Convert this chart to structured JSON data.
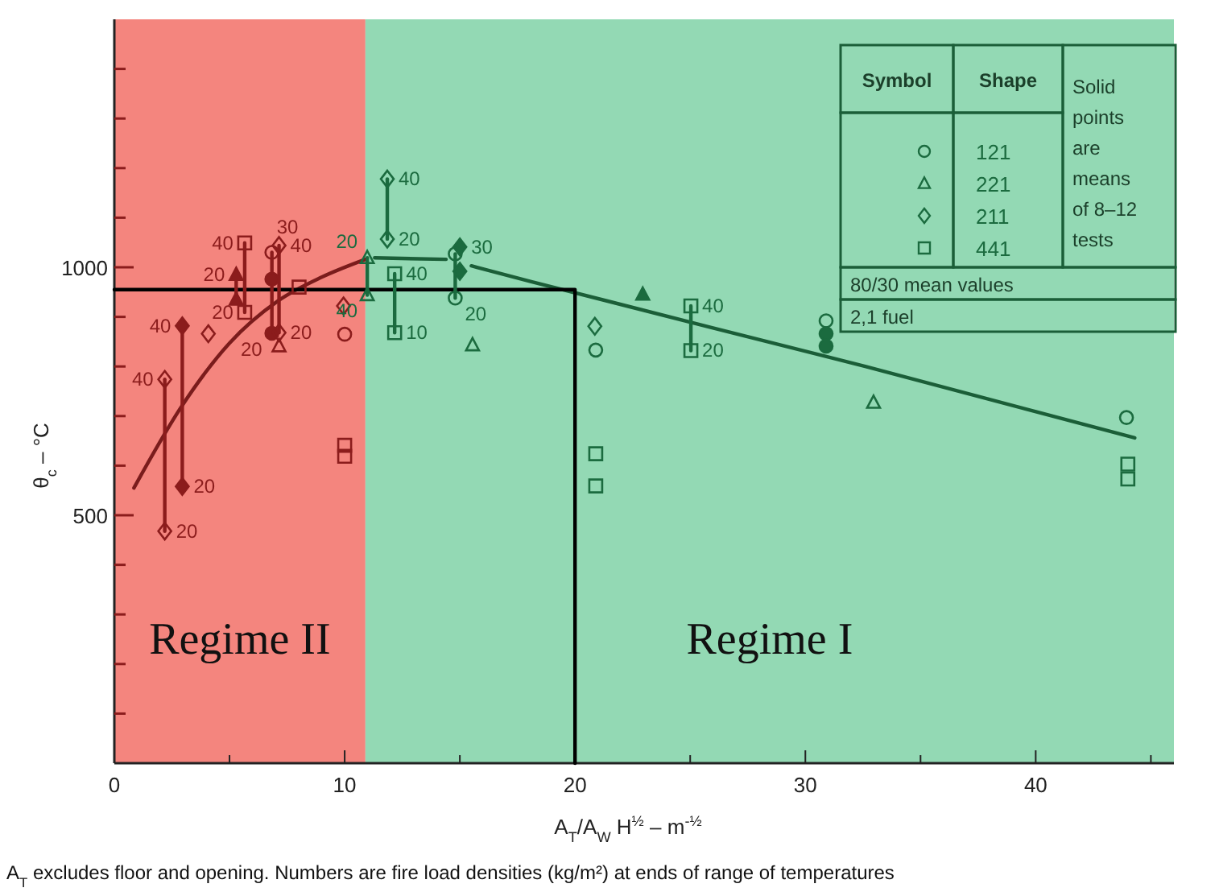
{
  "chart_data": {
    "type": "scatter",
    "xlabel": "A$_{T}$/A$_{W}$ H$^{½}$ – m$^{-½}$",
    "ylabel": "θ$_{c}$ – °C",
    "xlim": [
      0,
      46
    ],
    "ylim": [
      0,
      1500
    ],
    "xticks": [
      0,
      {
        "value": 5,
        "label": null
      },
      10,
      {
        "value": 15,
        "label": null
      },
      20,
      {
        "value": 25,
        "label": null
      },
      30,
      {
        "value": 35,
        "label": null
      },
      40,
      {
        "value": 45,
        "label": null
      }
    ],
    "yticks": [
      {
        "value": 100,
        "label": null
      },
      {
        "value": 200,
        "label": null
      },
      {
        "value": 300,
        "label": null
      },
      {
        "value": 400,
        "label": null
      },
      500,
      {
        "value": 600,
        "label": null
      },
      {
        "value": 700,
        "label": null
      },
      {
        "value": 800,
        "label": null
      },
      {
        "value": 900,
        "label": null
      },
      1000,
      {
        "value": 1100,
        "label": null
      },
      {
        "value": 1200,
        "label": null
      },
      {
        "value": 1300,
        "label": null
      },
      {
        "value": 1400,
        "label": null
      }
    ],
    "legend": "top right",
    "legend_title": "Symbol",
    "bands": [
      {
        "axis": "x",
        "from": 0,
        "to": 10.9,
        "label": "Regime II",
        "color": "#f4857e"
      },
      {
        "axis": "x",
        "from": 10.9,
        "to": 46,
        "label": "Regime I",
        "color": "#93d9b4"
      }
    ],
    "annotations": [
      "Shape",
      "Solid points are means of 8–12 tests",
      "80/30 mean values",
      "2,1 fuel",
      "A$_{T}$ excludes floor and opening. Numbers are fire load densities (kg/m²) at ends of range of temperatures",
      {
        "text": "40",
        "x": 2.19,
        "y": 774
      },
      {
        "text": "20",
        "x": 2.19,
        "y": 468
      },
      {
        "text": "40",
        "x": 2.95,
        "y": 882
      },
      {
        "text": "20",
        "x": 2.95,
        "y": 558
      },
      {
        "text": "20",
        "x": 5.29,
        "y": 985
      },
      {
        "text": "40",
        "x": 5.66,
        "y": 1049
      },
      {
        "text": "20",
        "x": 5.66,
        "y": 909
      },
      {
        "text": "30",
        "x": 6.84,
        "y": 1030
      },
      {
        "text": "20",
        "x": 6.84,
        "y": 867
      },
      {
        "text": "40",
        "x": 7.15,
        "y": 1044
      },
      {
        "text": "20",
        "x": 7.15,
        "y": 868
      },
      {
        "text": "20",
        "x": 10.98,
        "y": 1019
      },
      {
        "text": "40",
        "x": 10.98,
        "y": 944
      },
      {
        "text": "40",
        "x": 11.85,
        "y": 1178
      },
      {
        "text": "20",
        "x": 11.85,
        "y": 1057
      },
      {
        "text": "40",
        "x": 12.17,
        "y": 987
      },
      {
        "text": "10",
        "x": 12.17,
        "y": 868
      },
      {
        "text": "30",
        "x": 15.0,
        "y": 1041
      },
      {
        "text": "20",
        "x": 14.8,
        "y": 938
      },
      {
        "text": "40",
        "x": 25.03,
        "y": 922
      },
      {
        "text": "20",
        "x": 25.03,
        "y": 832
      }
    ],
    "series": [
      {
        "type": "line",
        "color": "#7a1c1c",
        "x": [
          0.85,
          2.9,
          5.0,
          7.1,
          9.0,
          10.9
        ],
        "values": [
          555,
          718,
          847,
          932,
          980,
          1016
        ]
      },
      {
        "type": "line",
        "color": "#1b5e38",
        "x": [
          11.3,
          14.4,
          15.0,
          15.5,
          18.1,
          32.6,
          44.3
        ],
        "values": [
          1019,
          1016,
          null,
          1003,
          971,
          800,
          656
        ]
      },
      {
        "type": "line",
        "color": "#000000",
        "x": [
          0,
          20,
          20
        ],
        "values": [
          955,
          955,
          0
        ]
      },
      {
        "type": "line",
        "color": "#8b1c1c",
        "x": [
          2.19,
          2.19
        ],
        "values": [
          468,
          774
        ]
      },
      {
        "type": "line",
        "color": "#8b1c1c",
        "x": [
          2.95,
          2.95
        ],
        "values": [
          558,
          882
        ]
      },
      {
        "type": "line",
        "color": "#8b1c1c",
        "x": [
          5.29,
          5.29
        ],
        "values": [
          935,
          985
        ]
      },
      {
        "type": "line",
        "color": "#8b1c1c",
        "x": [
          5.66,
          5.66
        ],
        "values": [
          909,
          1049
        ]
      },
      {
        "type": "line",
        "color": "#8b1c1c",
        "x": [
          6.84,
          6.84
        ],
        "values": [
          867,
          1030
        ]
      },
      {
        "type": "line",
        "color": "#8b1c1c",
        "x": [
          7.15,
          7.15
        ],
        "values": [
          868,
          1044
        ]
      },
      {
        "type": "line",
        "color": "#1b6b3f",
        "x": [
          10.98,
          10.98
        ],
        "values": [
          944,
          1019
        ]
      },
      {
        "type": "line",
        "color": "#1b6b3f",
        "x": [
          11.85,
          11.85
        ],
        "values": [
          1057,
          1178
        ]
      },
      {
        "type": "line",
        "color": "#1b6b3f",
        "x": [
          12.17,
          12.17
        ],
        "values": [
          868,
          987
        ]
      },
      {
        "type": "line",
        "color": "#1b6b3f",
        "x": [
          14.8,
          14.8
        ],
        "values": [
          938,
          1027
        ]
      },
      {
        "type": "line",
        "color": "#1b6b3f",
        "x": [
          25.03,
          25.03
        ],
        "values": [
          832,
          922
        ]
      },
      {
        "name": "121",
        "marker": "circle",
        "color": "#1b6b3f",
        "x": [
          6.84,
          10.0,
          14.8,
          14.8,
          20.9,
          30.9,
          43.94
        ],
        "values": [
          1030,
          865,
          1027,
          938,
          833,
          892,
          697
        ],
        "colors": [
          "#8b1c1c",
          "#8b1c1c",
          "#1b6b3f",
          "#1b6b3f",
          "#1b6b3f",
          "#1b6b3f",
          "#1b6b3f"
        ]
      },
      {
        "name": "221",
        "marker": "triangle",
        "color": "#1b6b3f",
        "x": [
          7.15,
          10.98,
          10.98,
          15.55,
          32.96
        ],
        "values": [
          841,
          1019,
          944,
          843,
          727
        ],
        "colors": [
          "#8b1c1c",
          "#1b6b3f",
          "#1b6b3f",
          "#1b6b3f",
          "#1b6b3f"
        ]
      },
      {
        "name": "211",
        "marker": "diamond",
        "color": "#1b6b3f",
        "x": [
          2.19,
          2.19,
          4.08,
          7.15,
          7.15,
          9.95,
          11.85,
          11.85,
          20.86
        ],
        "values": [
          774,
          468,
          866,
          1044,
          868,
          922,
          1178,
          1057,
          881
        ],
        "colors": [
          "#8b1c1c",
          "#8b1c1c",
          "#8b1c1c",
          "#8b1c1c",
          "#8b1c1c",
          "#8b1c1c",
          "#1b6b3f",
          "#1b6b3f",
          "#1b6b3f"
        ]
      },
      {
        "name": "441",
        "marker": "square",
        "color": "#1b6b3f",
        "x": [
          5.66,
          5.66,
          8.02,
          10.0,
          10.0,
          12.17,
          12.17,
          20.9,
          20.9,
          25.03,
          25.03,
          44.0,
          44.0
        ],
        "values": [
          1049,
          909,
          960,
          641,
          619,
          987,
          868,
          624,
          559,
          922,
          832,
          603,
          573
        ],
        "colors": [
          "#8b1c1c",
          "#8b1c1c",
          "#8b1c1c",
          "#8b1c1c",
          "#8b1c1c",
          "#1b6b3f",
          "#1b6b3f",
          "#1b6b3f",
          "#1b6b3f",
          "#1b6b3f",
          "#1b6b3f",
          "#1b6b3f",
          "#1b6b3f"
        ]
      },
      {
        "marker": "circle",
        "x": [
          6.84,
          6.84,
          30.9,
          30.9
        ],
        "values": [
          976,
          867,
          866,
          841
        ],
        "colors": [
          "#8b1c1c",
          "#8b1c1c",
          "#1b6b3f",
          "#1b6b3f"
        ]
      },
      {
        "marker": "triangle",
        "x": [
          5.29,
          5.29,
          22.94
        ],
        "values": [
          985,
          935,
          945
        ],
        "colors": [
          "#8b1c1c",
          "#8b1c1c",
          "#1b6b3f"
        ]
      },
      {
        "marker": "diamond",
        "x": [
          2.95,
          2.95,
          15.0,
          15.0
        ],
        "values": [
          882,
          558,
          1041,
          992
        ],
        "colors": [
          "#8b1c1c",
          "#8b1c1c",
          "#1b6b3f",
          "#1b6b3f"
        ]
      }
    ]
  }
}
